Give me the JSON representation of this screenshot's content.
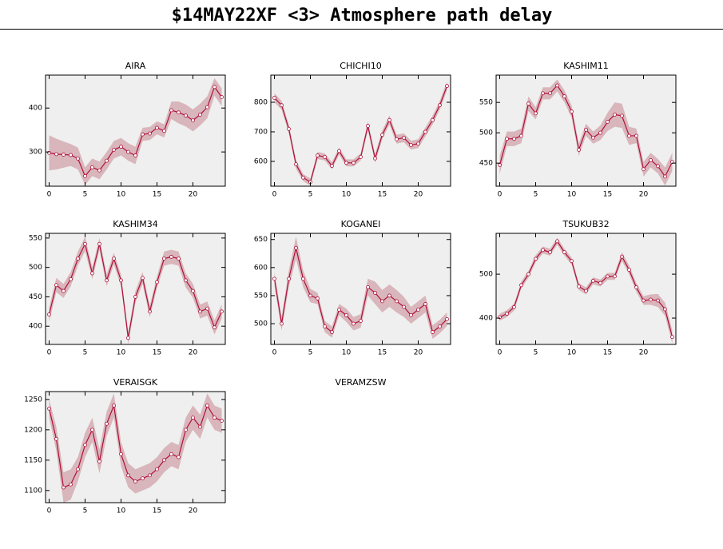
{
  "title": "$14MAY22XF <3>  Atmosphere path delay",
  "chart_data": [
    {
      "type": "line",
      "title": "AIRA",
      "color": "#b0103a",
      "band_color": "#d8b6bb",
      "x": [
        0,
        1,
        2,
        3,
        4,
        5,
        6,
        7,
        8,
        9,
        10,
        11,
        12,
        13,
        14,
        15,
        16,
        17,
        18,
        19,
        20,
        21,
        22,
        23,
        24
      ],
      "values": [
        298,
        295,
        294,
        293,
        285,
        245,
        265,
        258,
        280,
        305,
        312,
        300,
        292,
        340,
        342,
        355,
        348,
        395,
        390,
        383,
        372,
        385,
        402,
        448,
        425
      ],
      "errors": [
        40,
        35,
        30,
        25,
        25,
        20,
        20,
        20,
        20,
        20,
        20,
        20,
        20,
        15,
        15,
        15,
        15,
        20,
        25,
        25,
        25,
        25,
        25,
        20,
        20
      ],
      "xlim": [
        -0.5,
        24.5
      ],
      "xticks": [
        0,
        5,
        10,
        15,
        20
      ],
      "ylim": [
        222,
        475
      ],
      "yticks": [
        300,
        400
      ]
    },
    {
      "type": "line",
      "title": "CHICHI10",
      "color": "#b0103a",
      "band_color": "#d8b6bb",
      "x": [
        0,
        1,
        2,
        3,
        4,
        5,
        6,
        7,
        8,
        9,
        10,
        11,
        12,
        13,
        14,
        15,
        16,
        17,
        18,
        19,
        20,
        21,
        22,
        23,
        24
      ],
      "values": [
        815,
        790,
        710,
        590,
        545,
        530,
        620,
        615,
        585,
        635,
        595,
        595,
        615,
        720,
        610,
        690,
        740,
        675,
        680,
        655,
        660,
        700,
        740,
        790,
        855
      ],
      "errors": [
        15,
        15,
        15,
        15,
        12,
        12,
        12,
        12,
        12,
        12,
        12,
        12,
        12,
        15,
        15,
        15,
        15,
        15,
        15,
        15,
        15,
        15,
        15,
        15,
        15
      ],
      "xlim": [
        -0.5,
        24.5
      ],
      "xticks": [
        0,
        5,
        10,
        15,
        20
      ],
      "ylim": [
        516,
        892
      ],
      "yticks": [
        600,
        700,
        800
      ]
    },
    {
      "type": "line",
      "title": "KASHIM11",
      "color": "#b0103a",
      "band_color": "#d8b6bb",
      "x": [
        0,
        1,
        2,
        3,
        4,
        5,
        6,
        7,
        8,
        9,
        10,
        11,
        12,
        13,
        14,
        15,
        16,
        17,
        18,
        19,
        20,
        21,
        22,
        23,
        24
      ],
      "values": [
        447,
        490,
        490,
        495,
        548,
        532,
        565,
        565,
        578,
        560,
        535,
        472,
        505,
        492,
        500,
        518,
        530,
        528,
        495,
        495,
        440,
        455,
        445,
        428,
        452
      ],
      "errors": [
        15,
        12,
        12,
        12,
        12,
        10,
        10,
        10,
        10,
        10,
        10,
        10,
        10,
        10,
        12,
        15,
        20,
        20,
        15,
        12,
        12,
        12,
        12,
        15,
        15
      ],
      "xlim": [
        -0.5,
        24.5
      ],
      "xticks": [
        0,
        5,
        10,
        15,
        20
      ],
      "ylim": [
        412,
        595
      ],
      "yticks": [
        450,
        500,
        550
      ]
    },
    {
      "type": "line",
      "title": "KASHIM34",
      "color": "#b0103a",
      "band_color": "#d8b6bb",
      "x": [
        0,
        1,
        2,
        3,
        4,
        5,
        6,
        7,
        8,
        9,
        10,
        11,
        12,
        13,
        14,
        15,
        16,
        17,
        18,
        19,
        20,
        21,
        22,
        23,
        24
      ],
      "values": [
        420,
        470,
        460,
        480,
        515,
        540,
        490,
        540,
        478,
        515,
        478,
        380,
        450,
        482,
        425,
        475,
        515,
        518,
        515,
        478,
        460,
        425,
        430,
        398,
        425
      ],
      "errors": [
        12,
        12,
        12,
        12,
        12,
        12,
        10,
        10,
        10,
        10,
        10,
        10,
        10,
        10,
        10,
        10,
        12,
        12,
        12,
        12,
        12,
        12,
        12,
        12,
        12
      ],
      "xlim": [
        -0.5,
        24.5
      ],
      "xticks": [
        0,
        5,
        10,
        15,
        20
      ],
      "ylim": [
        369,
        558
      ],
      "yticks": [
        400,
        450,
        500,
        550
      ]
    },
    {
      "type": "line",
      "title": "KOGANEI",
      "color": "#b0103a",
      "band_color": "#d8b6bb",
      "x": [
        0,
        1,
        2,
        3,
        4,
        5,
        6,
        7,
        8,
        9,
        10,
        11,
        12,
        13,
        14,
        15,
        16,
        17,
        18,
        19,
        20,
        21,
        22,
        23,
        24
      ],
      "values": [
        580,
        500,
        580,
        635,
        580,
        550,
        545,
        495,
        485,
        525,
        515,
        500,
        505,
        565,
        555,
        540,
        550,
        540,
        530,
        515,
        525,
        535,
        485,
        495,
        508
      ],
      "errors": [
        12,
        12,
        15,
        20,
        15,
        12,
        10,
        10,
        10,
        10,
        12,
        12,
        12,
        15,
        20,
        20,
        20,
        20,
        18,
        15,
        15,
        15,
        12,
        12,
        12
      ],
      "xlim": [
        -0.5,
        24.5
      ],
      "xticks": [
        0,
        5,
        10,
        15,
        20
      ],
      "ylim": [
        463,
        661
      ],
      "yticks": [
        500,
        550,
        600,
        650
      ]
    },
    {
      "type": "line",
      "title": "TSUKUB32",
      "color": "#b0103a",
      "band_color": "#d8b6bb",
      "x": [
        0,
        1,
        2,
        3,
        4,
        5,
        6,
        7,
        8,
        9,
        10,
        11,
        12,
        13,
        14,
        15,
        16,
        17,
        18,
        19,
        20,
        21,
        22,
        23,
        24
      ],
      "values": [
        402,
        410,
        425,
        475,
        500,
        535,
        555,
        550,
        575,
        550,
        530,
        472,
        462,
        485,
        480,
        495,
        495,
        540,
        510,
        470,
        440,
        442,
        440,
        420,
        357
      ],
      "errors": [
        8,
        8,
        8,
        8,
        8,
        8,
        8,
        8,
        8,
        8,
        8,
        8,
        8,
        8,
        8,
        8,
        8,
        10,
        10,
        10,
        10,
        12,
        15,
        15,
        15
      ],
      "xlim": [
        -0.5,
        24.5
      ],
      "xticks": [
        0,
        5,
        10,
        15,
        20
      ],
      "ylim": [
        340,
        593
      ],
      "yticks": [
        400,
        500
      ]
    },
    {
      "type": "line",
      "title": "VERAISGK",
      "color": "#b0103a",
      "band_color": "#d8b6bb",
      "x": [
        0,
        1,
        2,
        3,
        4,
        5,
        6,
        7,
        8,
        9,
        10,
        11,
        12,
        13,
        14,
        15,
        16,
        17,
        18,
        19,
        20,
        21,
        22,
        23,
        24
      ],
      "values": [
        1235,
        1185,
        1105,
        1110,
        1135,
        1175,
        1200,
        1148,
        1210,
        1240,
        1160,
        1125,
        1115,
        1120,
        1125,
        1135,
        1150,
        1160,
        1155,
        1200,
        1220,
        1205,
        1240,
        1220,
        1215
      ],
      "errors": [
        15,
        20,
        25,
        25,
        20,
        20,
        20,
        20,
        20,
        20,
        20,
        20,
        20,
        20,
        20,
        20,
        20,
        20,
        20,
        20,
        20,
        20,
        20,
        20,
        20
      ],
      "xlim": [
        -0.5,
        24.5
      ],
      "xticks": [
        0,
        5,
        10,
        15,
        20
      ],
      "ylim": [
        1080,
        1263
      ],
      "yticks": [
        1100,
        1150,
        1200,
        1250
      ]
    },
    {
      "type": "empty",
      "title": "VERAMZSW"
    }
  ]
}
